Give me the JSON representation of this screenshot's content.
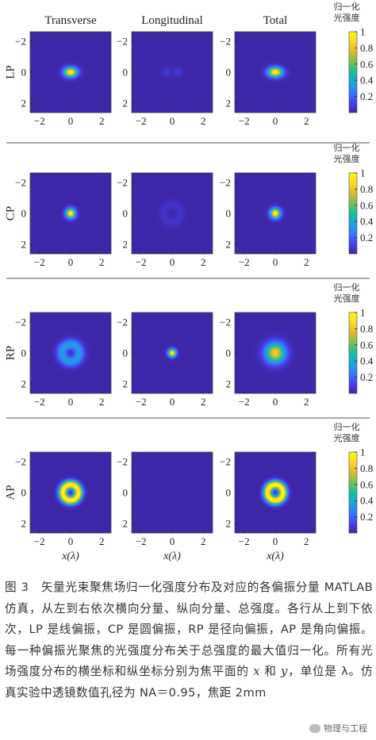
{
  "chart_data": {
    "type": "heatmap",
    "column_titles": [
      "Transverse",
      "Longitudinal",
      "Total"
    ],
    "row_labels": [
      "LP",
      "CP",
      "RP",
      "AP"
    ],
    "xlabel": "x(λ)",
    "x_ticks": [
      "−2",
      "0",
      "2"
    ],
    "y_ticks": [
      "−2",
      "0",
      "2"
    ],
    "xlim": [
      -2.6,
      2.6
    ],
    "ylim": [
      -2.6,
      2.6
    ],
    "colorbar_title": [
      "归一化",
      "光强度"
    ],
    "colorbar_ticks": [
      "1",
      "0.8",
      "0.6",
      "0.4",
      "0.2"
    ],
    "colorbar_range": [
      0,
      1
    ],
    "colormap": [
      "#3e26a8",
      "#4743f0",
      "#347cfd",
      "#1aa6db",
      "#17bf9b",
      "#76c24f",
      "#e0b92e",
      "#fdd72c",
      "#f9fb0e"
    ],
    "panels": [
      [
        {
          "shape": "spot",
          "peak": 1.0,
          "center_x": 0,
          "center_y": 0,
          "sigma_x": 0.3,
          "sigma_y": 0.22
        },
        {
          "shape": "double-lobe",
          "peak": 0.08,
          "lobe_offset": 0.35,
          "sigma": 0.22
        },
        {
          "shape": "spot",
          "peak": 1.0,
          "center_x": 0,
          "center_y": 0,
          "sigma_x": 0.33,
          "sigma_y": 0.22
        }
      ],
      [
        {
          "shape": "spot",
          "peak": 1.0,
          "center_x": 0,
          "center_y": 0,
          "sigma_x": 0.22,
          "sigma_y": 0.22
        },
        {
          "shape": "ring",
          "peak": 0.06,
          "radius": 0.55,
          "width": 0.22
        },
        {
          "shape": "spot",
          "peak": 1.0,
          "center_x": 0,
          "center_y": 0,
          "sigma_x": 0.23,
          "sigma_y": 0.23
        }
      ],
      [
        {
          "shape": "ring",
          "peak": 0.35,
          "radius": 0.55,
          "width": 0.25
        },
        {
          "shape": "spot",
          "peak": 1.0,
          "center_x": 0,
          "center_y": 0,
          "sigma_x": 0.18,
          "sigma_y": 0.18
        },
        {
          "shape": "spot",
          "peak": 0.85,
          "center_x": 0,
          "center_y": 0,
          "sigma_x": 0.45,
          "sigma_y": 0.45
        }
      ],
      [
        {
          "shape": "ring",
          "peak": 1.0,
          "radius": 0.5,
          "width": 0.2
        },
        {
          "shape": "empty",
          "peak": 0.0
        },
        {
          "shape": "ring",
          "peak": 1.0,
          "radius": 0.5,
          "width": 0.2
        }
      ]
    ]
  },
  "caption": {
    "prefix": "图 3　矢量光束聚焦场归一化强度分布及对应的各偏振分量 MATLAB 仿真，从左到右依次横向分量、纵向分量、总强度。各行从上到下依次，LP 是线偏振，CP 是圆偏振，RP 是径向偏振，AP 是角向偏振。每一种偏振光聚焦的光强度分布关于总强度的最大值归一化。所有光场强度分布的横坐标和纵坐标分别为焦平面的 ",
    "var_x": "x",
    "and": " 和 ",
    "var_y": "y",
    "unit_text": "，单位是 λ。仿真实验中透镜数值孔径为 NA＝0.95，焦距 2mm"
  },
  "watermark": {
    "text": "物理与工程"
  }
}
